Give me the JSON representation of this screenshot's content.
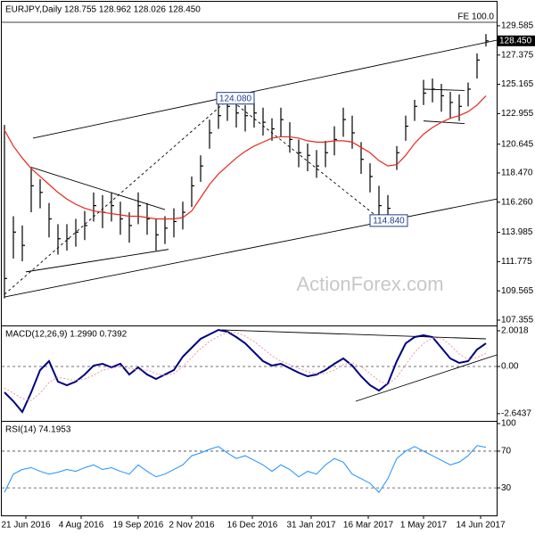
{
  "chart_data": [
    {
      "type": "ohlc",
      "title": "EURJPY,Daily 128.755 128.962 128.026 128.450",
      "color": "#000000",
      "x": [
        0,
        5,
        10,
        15,
        20,
        25,
        30,
        35,
        40,
        45,
        50,
        55,
        60,
        65,
        70,
        75,
        80,
        85,
        90,
        95,
        100,
        105,
        110,
        115,
        120,
        125,
        130,
        135,
        140,
        145,
        150,
        155,
        160,
        165,
        170,
        175,
        180,
        185,
        190,
        195,
        200,
        205,
        210,
        215,
        220,
        225,
        230,
        235,
        240,
        245,
        250,
        255,
        260,
        265,
        270
      ],
      "high": [
        122.1,
        115.2,
        114.5,
        118.9,
        118.0,
        116.2,
        114.6,
        114.6,
        115.0,
        115.6,
        117.0,
        116.8,
        117.0,
        116.3,
        115.5,
        117.0,
        116.2,
        115.0,
        115.2,
        115.8,
        116.3,
        118.2,
        119.8,
        122.5,
        123.8,
        124.1,
        123.9,
        123.6,
        123.8,
        123.4,
        122.6,
        123.4,
        122.3,
        121.0,
        120.7,
        120.2,
        120.9,
        122.0,
        123.4,
        122.8,
        120.8,
        119.2,
        117.5,
        116.8,
        120.5,
        122.8,
        124.0,
        125.5,
        125.6,
        125.2,
        124.6,
        124.4,
        125.3,
        127.5,
        128.962
      ],
      "low": [
        109.0,
        112.0,
        111.8,
        115.5,
        115.8,
        113.6,
        112.3,
        112.6,
        112.9,
        113.4,
        114.8,
        114.3,
        114.8,
        113.8,
        113.2,
        114.6,
        113.8,
        112.6,
        113.1,
        113.6,
        114.2,
        115.9,
        117.8,
        120.3,
        121.8,
        122.4,
        121.9,
        121.6,
        121.9,
        121.3,
        120.9,
        121.2,
        120.0,
        118.9,
        118.6,
        118.1,
        118.9,
        119.8,
        121.2,
        120.3,
        118.4,
        117.0,
        114.84,
        114.9,
        118.7,
        120.9,
        122.4,
        123.6,
        123.8,
        123.1,
        122.6,
        122.4,
        123.5,
        125.6,
        128.026
      ],
      "close": [
        110.5,
        114.0,
        113.0,
        117.5,
        117.0,
        115.0,
        113.5,
        113.5,
        114.0,
        114.5,
        116.0,
        115.5,
        116.0,
        115.0,
        114.5,
        116.0,
        115.0,
        113.8,
        114.3,
        114.8,
        115.5,
        117.5,
        119.0,
        121.5,
        122.8,
        123.5,
        123.0,
        122.8,
        123.0,
        122.3,
        121.8,
        122.5,
        121.0,
        120.0,
        119.8,
        119.0,
        120.0,
        121.0,
        122.5,
        121.5,
        119.5,
        118.2,
        116.0,
        115.8,
        120.0,
        122.0,
        123.5,
        124.5,
        124.8,
        124.3,
        123.8,
        123.5,
        124.8,
        127.0,
        128.45
      ],
      "moving_average": {
        "color": "#e8261e",
        "values": [
          121.7,
          120.5,
          119.6,
          118.8,
          118.2,
          117.6,
          117.0,
          116.5,
          116.1,
          115.8,
          115.6,
          115.5,
          115.4,
          115.3,
          115.2,
          115.2,
          115.1,
          115.0,
          115.0,
          115.0,
          115.1,
          115.6,
          116.6,
          117.6,
          118.4,
          119.0,
          119.6,
          120.1,
          120.5,
          120.8,
          121.1,
          121.2,
          121.2,
          121.1,
          120.9,
          120.8,
          120.8,
          120.9,
          120.9,
          120.8,
          120.4,
          120.0,
          119.4,
          119.0,
          119.1,
          119.8,
          120.7,
          121.4,
          121.9,
          122.3,
          122.6,
          122.8,
          123.1,
          123.6,
          124.3
        ]
      },
      "xlim": [
        -1.5,
        276
      ],
      "ylim": [
        106.95,
        131.4
      ],
      "yticks": [
        129.585,
        {
          "value": 127.375,
          "label": "127.375"
        },
        125.165,
        122.955,
        120.645,
        {
          "value": 118.47,
          "label": "118.470"
        },
        {
          "value": 116.26,
          "label": "116.260"
        },
        113.985,
        111.775,
        109.565,
        107.355
      ],
      "last_price": {
        "value": 128.45,
        "label": "128.450"
      },
      "fe_level": {
        "label": "FE 100.0",
        "value": 129.85
      },
      "trendlines": [
        {
          "x": [
            16,
            276
          ],
          "y": [
            121.1,
            128.5
          ]
        },
        {
          "x": [
            0,
            276
          ],
          "y": [
            109.1,
            116.5
          ]
        },
        {
          "x": [
            15,
            90
          ],
          "y": [
            118.9,
            115.7
          ]
        },
        {
          "x": [
            12,
            92
          ],
          "y": [
            111.0,
            112.7
          ]
        },
        {
          "x": [
            0,
            126
          ],
          "y": [
            109.3,
            124.08
          ],
          "dash": true
        },
        {
          "x": [
            126,
            212
          ],
          "y": [
            124.08,
            114.84
          ],
          "dash": true
        },
        {
          "x": [
            235,
            258
          ],
          "y": [
            124.8,
            124.7
          ]
        },
        {
          "x": [
            235,
            258
          ],
          "y": [
            122.4,
            122.2
          ]
        }
      ],
      "annotations": [
        {
          "label": "124.080",
          "x": 120,
          "y": 124.08
        },
        {
          "label": "114.840",
          "x": 206,
          "y": 114.84
        }
      ],
      "watermark": "ActionForex.com"
    },
    {
      "type": "line",
      "title": "MACD(12,26,9) 1.2990 0.7392",
      "x": [
        0,
        5,
        10,
        15,
        20,
        25,
        30,
        35,
        40,
        45,
        50,
        55,
        60,
        65,
        70,
        75,
        80,
        85,
        90,
        95,
        100,
        105,
        110,
        115,
        120,
        125,
        130,
        135,
        140,
        145,
        150,
        155,
        160,
        165,
        170,
        175,
        180,
        185,
        190,
        195,
        200,
        205,
        210,
        215,
        220,
        225,
        230,
        235,
        240,
        245,
        250,
        255,
        260,
        265,
        270
      ],
      "series": [
        {
          "color": "#000080",
          "values": [
            -1.45,
            -1.95,
            -2.55,
            -1.45,
            -0.2,
            0.3,
            -0.85,
            -1.05,
            -0.85,
            -0.45,
            0.05,
            0.15,
            -0.05,
            0.15,
            -0.45,
            -0.05,
            -0.45,
            -0.7,
            -0.45,
            -0.2,
            0.55,
            1.05,
            1.55,
            1.8,
            2.05,
            1.95,
            1.65,
            1.3,
            0.8,
            0.3,
            0.05,
            0.15,
            -0.1,
            -0.35,
            -0.55,
            -0.45,
            -0.2,
            0.15,
            0.45,
            0.05,
            -0.55,
            -1.05,
            -1.35,
            -0.95,
            0.3,
            1.3,
            1.65,
            1.75,
            1.65,
            1.05,
            0.45,
            0.2,
            0.3,
            0.95,
            1.299
          ]
        },
        {
          "color": "#e89a9a",
          "dash": true,
          "values": [
            -1.2,
            -1.5,
            -1.8,
            -1.9,
            -1.5,
            -0.9,
            -0.6,
            -0.7,
            -0.8,
            -0.7,
            -0.5,
            -0.2,
            -0.1,
            0.0,
            -0.1,
            -0.2,
            -0.2,
            -0.4,
            -0.5,
            -0.4,
            0.0,
            0.5,
            1.0,
            1.4,
            1.7,
            1.9,
            1.9,
            1.7,
            1.4,
            1.0,
            0.6,
            0.3,
            0.1,
            -0.1,
            -0.3,
            -0.4,
            -0.4,
            -0.2,
            0.1,
            0.2,
            0.0,
            -0.4,
            -0.8,
            -1.0,
            -0.6,
            0.1,
            0.8,
            1.3,
            1.6,
            1.6,
            1.2,
            0.7,
            0.4,
            0.5,
            0.7392
          ]
        }
      ],
      "xlim": [
        -1.5,
        276
      ],
      "ylim": [
        -3.05,
        2.25
      ],
      "yticks": [
        2.0018,
        {
          "value": 0,
          "label": "0.00"
        },
        -2.6437
      ],
      "grid": [
        0
      ],
      "trendlines": [
        {
          "x": [
            122,
            270
          ],
          "y": [
            2.05,
            1.55
          ]
        },
        {
          "x": [
            197,
            276
          ],
          "y": [
            -1.95,
            0.65
          ]
        }
      ]
    },
    {
      "type": "line",
      "title": "RSI(14) 74.1953",
      "x": [
        0,
        5,
        10,
        15,
        20,
        25,
        30,
        35,
        40,
        45,
        50,
        55,
        60,
        65,
        70,
        75,
        80,
        85,
        90,
        95,
        100,
        105,
        110,
        115,
        120,
        125,
        130,
        135,
        140,
        145,
        150,
        155,
        160,
        165,
        170,
        175,
        180,
        185,
        190,
        195,
        200,
        205,
        210,
        215,
        220,
        225,
        230,
        235,
        240,
        245,
        250,
        255,
        260,
        265,
        270
      ],
      "series": [
        {
          "color": "#1e90ff",
          "values": [
            25,
            45,
            50,
            52,
            48,
            45,
            47,
            50,
            48,
            52,
            55,
            50,
            52,
            48,
            45,
            55,
            48,
            42,
            45,
            50,
            55,
            65,
            68,
            72,
            75,
            68,
            62,
            65,
            60,
            55,
            48,
            55,
            50,
            42,
            48,
            45,
            55,
            62,
            58,
            45,
            40,
            35,
            25,
            40,
            62,
            70,
            75,
            70,
            65,
            60,
            55,
            58,
            65,
            76,
            74.1953
          ]
        }
      ],
      "xlim": [
        -1.5,
        276
      ],
      "ylim": [
        0,
        102
      ],
      "yticks": [
        100,
        70,
        30
      ],
      "grid": [
        70,
        30
      ],
      "xticks": [
        {
          "value": 12,
          "label": "21 Jun 2016"
        },
        {
          "value": 43,
          "label": "4 Aug 2016"
        },
        {
          "value": 75,
          "label": "19 Sep 2016"
        },
        {
          "value": 105,
          "label": "2 Nov 2016"
        },
        {
          "value": 139,
          "label": "16 Dec 2016"
        },
        {
          "value": 172,
          "label": "31 Jan 2017"
        },
        {
          "value": 204,
          "label": "16 Mar 2017"
        },
        {
          "value": 235,
          "label": "1 May 2017"
        },
        {
          "value": 267,
          "label": "14 Jun 2017"
        }
      ]
    }
  ]
}
